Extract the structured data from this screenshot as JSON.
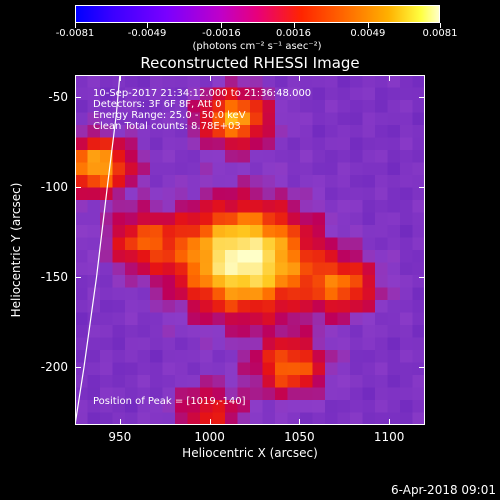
{
  "chart_data": {
    "type": "heatmap",
    "title": "Reconstructed RHESSI Image",
    "xlabel": "Heliocentric X (arcsec)",
    "ylabel": "Heliocentric Y (arcsec)",
    "xlim": [
      925,
      1120
    ],
    "ylim": [
      -232,
      -38
    ],
    "x_ticks": [
      "950",
      "1000",
      "1050",
      "1100"
    ],
    "x_tick_values": [
      950,
      1000,
      1050,
      1100
    ],
    "y_ticks": [
      "-50",
      "-100",
      "-150",
      "-200"
    ],
    "y_tick_values": [
      -50,
      -100,
      -150,
      -200
    ],
    "colorbar": {
      "ticks": [
        "-0.0081",
        "-0.0049",
        "-0.0016",
        "0.0016",
        "0.0049",
        "0.0081"
      ],
      "tick_values": [
        -0.0081,
        -0.0049,
        -0.0016,
        0.0016,
        0.0049,
        0.0081
      ],
      "units": "(photons cm⁻² s⁻¹ asec⁻²)"
    },
    "info_lines": [
      "10-Sep-2017 21:34:12.000 to 21:36:48.000",
      "Detectors: 3F 6F 8F, Att 0",
      "Energy Range: 25.0 - 50.0 keV",
      "Clean    Total counts: 8.78E+03"
    ],
    "peak_text": "Position of Peak = [1019,-140]",
    "sources": [
      {
        "x": 1019,
        "y": -140,
        "peak": 0.0081
      },
      {
        "x": 1014,
        "y": -62,
        "peak": 0.0055
      },
      {
        "x": 937,
        "y": -88,
        "peak": 0.0058
      },
      {
        "x": 962,
        "y": -130,
        "peak": 0.0035
      },
      {
        "x": 1075,
        "y": -155,
        "peak": 0.004
      },
      {
        "x": 1045,
        "y": -200,
        "peak": 0.0045
      },
      {
        "x": 1000,
        "y": -225,
        "peak": 0.003
      }
    ],
    "limb_curve": [
      [
        925,
        -232
      ],
      [
        930,
        -200
      ],
      [
        937,
        -150
      ],
      [
        943,
        -100
      ],
      [
        948,
        -60
      ],
      [
        950,
        -38
      ]
    ],
    "grid": false
  },
  "timestamp": "6-Apr-2018 09:01"
}
